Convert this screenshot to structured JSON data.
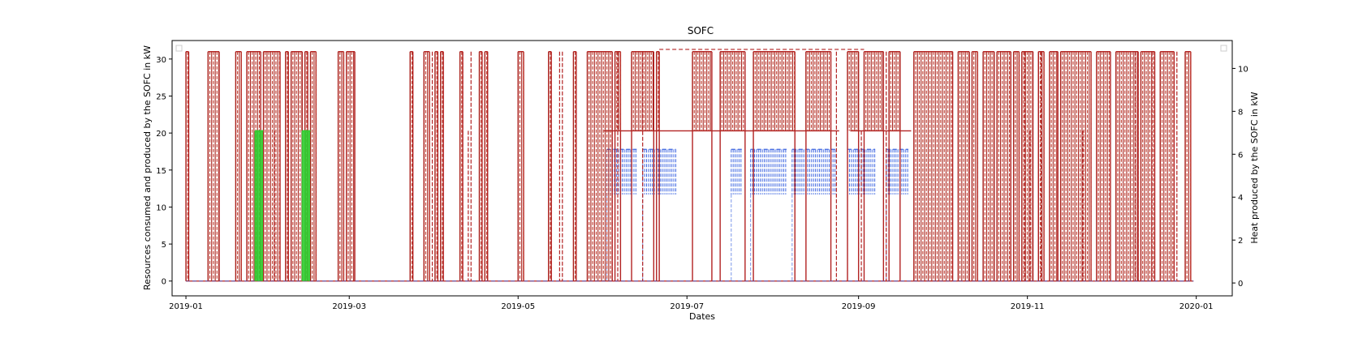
{
  "chart_data": {
    "type": "line",
    "title": "SOFC",
    "xlabel": "Dates",
    "ylabel": "Resources consumed and produced by the SOFC in kW",
    "y2label": "Heat produced by the SOFC in kW",
    "x_range": [
      "2018-12-27",
      "2020-01-14"
    ],
    "ylim": [
      -2,
      32.5
    ],
    "y2lim": [
      -0.6,
      11.3
    ],
    "x_tick_labels": [
      "2019-01",
      "2019-03",
      "2019-05",
      "2019-07",
      "2019-09",
      "2019-11",
      "2020-01"
    ],
    "x_tick_dates": [
      "2019-01-01",
      "2019-03-01",
      "2019-05-01",
      "2019-07-01",
      "2019-09-01",
      "2019-11-01",
      "2020-01-01"
    ],
    "y_ticks": [
      0,
      5,
      10,
      15,
      20,
      25,
      30
    ],
    "y2_ticks": [
      0,
      2,
      4,
      6,
      8,
      10
    ],
    "grid": false,
    "legend": "empty legend boxes top-left and top-right",
    "series": [
      {
        "axis": "left",
        "color": "#b22222",
        "style": "solid+dashed",
        "baseline": 0,
        "on_value": 31,
        "summer_floor": 20.3,
        "on_periods": [
          [
            "2019-01-01",
            "2019-01-02"
          ],
          [
            "2019-01-09",
            "2019-01-13"
          ],
          [
            "2019-01-19",
            "2019-01-21"
          ],
          [
            "2019-01-23",
            "2019-01-28"
          ],
          [
            "2019-01-29",
            "2019-02-04"
          ],
          [
            "2019-02-06",
            "2019-02-07"
          ],
          [
            "2019-02-08",
            "2019-02-12"
          ],
          [
            "2019-02-13",
            "2019-02-14"
          ],
          [
            "2019-02-15",
            "2019-02-17"
          ],
          [
            "2019-02-25",
            "2019-02-27"
          ],
          [
            "2019-02-28",
            "2019-03-03"
          ],
          [
            "2019-03-23",
            "2019-03-24"
          ],
          [
            "2019-03-28",
            "2019-03-30"
          ],
          [
            "2019-04-01",
            "2019-04-02"
          ],
          [
            "2019-04-03",
            "2019-04-04"
          ],
          [
            "2019-04-10",
            "2019-04-11"
          ],
          [
            "2019-04-17",
            "2019-04-18"
          ],
          [
            "2019-04-19",
            "2019-04-20"
          ],
          [
            "2019-05-01",
            "2019-05-03"
          ],
          [
            "2019-05-12",
            "2019-05-13"
          ],
          [
            "2019-05-21",
            "2019-05-22"
          ],
          [
            "2019-05-26",
            "2019-06-04"
          ],
          [
            "2019-06-05",
            "2019-06-07"
          ],
          [
            "2019-06-11",
            "2019-06-19"
          ],
          [
            "2019-06-20",
            "2019-06-21"
          ],
          [
            "2019-07-03",
            "2019-07-10"
          ],
          [
            "2019-07-13",
            "2019-07-22"
          ],
          [
            "2019-07-25",
            "2019-08-09"
          ],
          [
            "2019-08-13",
            "2019-08-22"
          ],
          [
            "2019-08-28",
            "2019-09-01"
          ],
          [
            "2019-09-03",
            "2019-09-10"
          ],
          [
            "2019-09-12",
            "2019-09-16"
          ],
          [
            "2019-09-21",
            "2019-10-05"
          ],
          [
            "2019-10-07",
            "2019-10-11"
          ],
          [
            "2019-10-12",
            "2019-10-14"
          ],
          [
            "2019-10-16",
            "2019-10-20"
          ],
          [
            "2019-10-21",
            "2019-10-26"
          ],
          [
            "2019-10-27",
            "2019-10-29"
          ],
          [
            "2019-10-30",
            "2019-11-03"
          ],
          [
            "2019-11-05",
            "2019-11-07"
          ],
          [
            "2019-11-09",
            "2019-11-12"
          ],
          [
            "2019-11-13",
            "2019-11-24"
          ],
          [
            "2019-11-26",
            "2019-12-01"
          ],
          [
            "2019-12-03",
            "2019-12-11"
          ],
          [
            "2019-12-12",
            "2019-12-17"
          ],
          [
            "2019-12-19",
            "2019-12-24"
          ],
          [
            "2019-12-28",
            "2019-12-30"
          ]
        ],
        "off_spikes": [
          "2019-02-02",
          "2019-03-31",
          "2019-04-11",
          "2019-04-13",
          "2019-04-14",
          "2019-05-13",
          "2019-05-16",
          "2019-05-17",
          "2019-06-04",
          "2019-06-06",
          "2019-06-15",
          "2019-08-24",
          "2019-09-02",
          "2019-09-11",
          "2019-10-31",
          "2019-11-02",
          "2019-11-03",
          "2019-11-05",
          "2019-11-06",
          "2019-11-21",
          "2019-12-10",
          "2019-12-11",
          "2019-12-16",
          "2019-12-25"
        ]
      },
      {
        "axis": "left",
        "color": "#32cd32",
        "style": "solid",
        "baseline": 0,
        "on_value": 20.3,
        "on_periods": [
          [
            "2019-01-26",
            "2019-01-29"
          ],
          [
            "2019-02-12",
            "2019-02-15"
          ]
        ]
      },
      {
        "axis": "left",
        "color": "#4169e1",
        "style": "dashed",
        "baseline": 0,
        "on_value": 17.8,
        "floor_value": 11.7,
        "on_periods": [
          [
            "2019-06-02",
            "2019-06-13"
          ],
          [
            "2019-06-15",
            "2019-06-27"
          ],
          [
            "2019-07-17",
            "2019-07-21"
          ],
          [
            "2019-07-24",
            "2019-08-06"
          ],
          [
            "2019-08-08",
            "2019-08-24"
          ],
          [
            "2019-08-28",
            "2019-09-07"
          ],
          [
            "2019-09-11",
            "2019-09-19"
          ]
        ]
      }
    ]
  }
}
